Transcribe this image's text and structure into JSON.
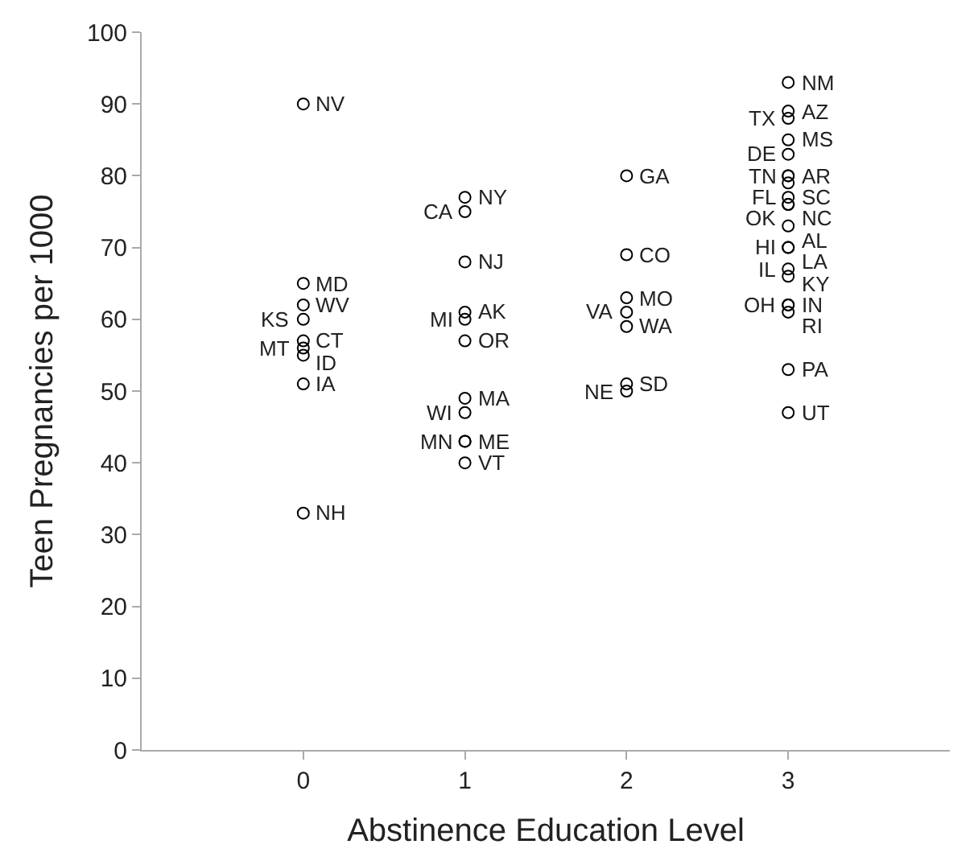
{
  "chart_data": {
    "type": "scatter",
    "xlabel": "Abstinence Education Level",
    "ylabel": "Teen Pregnancies per 1000",
    "x": [
      0,
      0,
      0,
      0,
      0,
      0,
      0,
      0,
      0,
      1,
      1,
      1,
      1,
      1,
      1,
      1,
      1,
      1,
      1,
      1,
      2,
      2,
      2,
      2,
      2,
      2,
      2,
      3,
      3,
      3,
      3,
      3,
      3,
      3,
      3,
      3,
      3,
      3,
      3,
      3,
      3,
      3,
      3,
      3,
      3,
      3,
      3,
      3
    ],
    "values": [
      90,
      65,
      62,
      60,
      57,
      56,
      55,
      51,
      33,
      77,
      75,
      68,
      61,
      60,
      57,
      49,
      47,
      43,
      43,
      40,
      80,
      69,
      63,
      61,
      59,
      51,
      50,
      93,
      89,
      88,
      85,
      83,
      80,
      80,
      79,
      77,
      76,
      76,
      73,
      70,
      70,
      67,
      66,
      62,
      62,
      61,
      53,
      47
    ],
    "color": "#000000",
    "marker": "circle",
    "annotations": [
      {
        "text": "NV",
        "x": 0,
        "y": 90
      },
      {
        "text": "MD",
        "x": 0,
        "y": 65
      },
      {
        "text": "WV",
        "x": 0,
        "y": 62
      },
      {
        "text": "KS",
        "x": 0,
        "y": 60
      },
      {
        "text": "CT",
        "x": 0,
        "y": 57
      },
      {
        "text": "MT",
        "x": 0,
        "y": 56
      },
      {
        "text": "ID",
        "x": 0,
        "y": 55
      },
      {
        "text": "IA",
        "x": 0,
        "y": 51
      },
      {
        "text": "NH",
        "x": 0,
        "y": 33
      },
      {
        "text": "NY",
        "x": 1,
        "y": 77
      },
      {
        "text": "CA",
        "x": 1,
        "y": 75
      },
      {
        "text": "NJ",
        "x": 1,
        "y": 68
      },
      {
        "text": "AK",
        "x": 1,
        "y": 61
      },
      {
        "text": "MI",
        "x": 1,
        "y": 60
      },
      {
        "text": "OR",
        "x": 1,
        "y": 57
      },
      {
        "text": "MA",
        "x": 1,
        "y": 49
      },
      {
        "text": "WI",
        "x": 1,
        "y": 47
      },
      {
        "text": "ME",
        "x": 1,
        "y": 43
      },
      {
        "text": "MN",
        "x": 1,
        "y": 43
      },
      {
        "text": "VT",
        "x": 1,
        "y": 40
      },
      {
        "text": "GA",
        "x": 2,
        "y": 80
      },
      {
        "text": "CO",
        "x": 2,
        "y": 69
      },
      {
        "text": "MO",
        "x": 2,
        "y": 63
      },
      {
        "text": "VA",
        "x": 2,
        "y": 61
      },
      {
        "text": "WA",
        "x": 2,
        "y": 59
      },
      {
        "text": "SD",
        "x": 2,
        "y": 51
      },
      {
        "text": "NE",
        "x": 2,
        "y": 50
      },
      {
        "text": "NM",
        "x": 3,
        "y": 93
      },
      {
        "text": "AZ",
        "x": 3,
        "y": 89
      },
      {
        "text": "TX",
        "x": 3,
        "y": 88
      },
      {
        "text": "MS",
        "x": 3,
        "y": 85
      },
      {
        "text": "DE",
        "x": 3,
        "y": 83
      },
      {
        "text": "AR",
        "x": 3,
        "y": 80
      },
      {
        "text": "TN",
        "x": 3,
        "y": 80
      },
      {
        "text": "SC",
        "x": 3,
        "y": 79
      },
      {
        "text": "FL",
        "x": 3,
        "y": 77
      },
      {
        "text": "NC",
        "x": 3,
        "y": 76
      },
      {
        "text": "OK",
        "x": 3,
        "y": 76
      },
      {
        "text": "AL",
        "x": 3,
        "y": 73
      },
      {
        "text": "HI",
        "x": 3,
        "y": 70
      },
      {
        "text": "LA",
        "x": 3,
        "y": 70
      },
      {
        "text": "IL",
        "x": 3,
        "y": 67
      },
      {
        "text": "KY",
        "x": 3,
        "y": 66
      },
      {
        "text": "IN",
        "x": 3,
        "y": 62
      },
      {
        "text": "OH",
        "x": 3,
        "y": 62
      },
      {
        "text": "RI",
        "x": 3,
        "y": 61
      },
      {
        "text": "PA",
        "x": 3,
        "y": 53
      },
      {
        "text": "UT",
        "x": 3,
        "y": 47
      }
    ],
    "xlim": [
      -1,
      4
    ],
    "xticks": [
      0,
      1,
      2,
      3
    ],
    "ylim": [
      0,
      100
    ],
    "yticks": [
      0,
      10,
      20,
      30,
      40,
      50,
      60,
      70,
      80,
      90,
      100
    ]
  }
}
